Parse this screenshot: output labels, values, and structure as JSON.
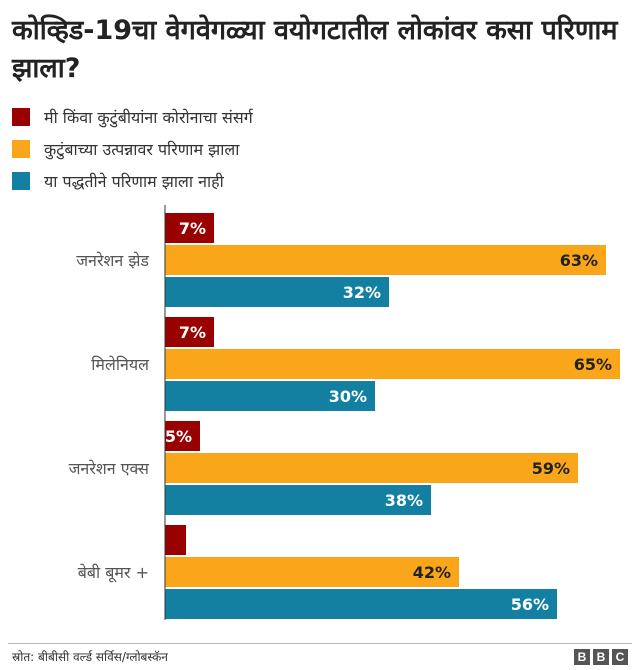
{
  "chart_data": {
    "type": "bar",
    "orientation": "horizontal",
    "title": "कोव्हिड-19चा वेगवेगळ्या वयोगटातील लोकांवर कसा परिणाम झाला?",
    "categories": [
      "जनरेशन झेड",
      "मिलेनियल",
      "जनरेशन एक्स",
      "बेबी बूमर +"
    ],
    "series": [
      {
        "name": "मी किंवा कुटुंबीयांना कोरोनाचा संसर्ग",
        "color": "#990000",
        "values": [
          7,
          7,
          5,
          3
        ],
        "labels": [
          "7%",
          "7%",
          "5%",
          ""
        ]
      },
      {
        "name": "कुटुंबाच्या उत्पन्नावर परिणाम झाला",
        "color": "#FAA61A",
        "values": [
          63,
          65,
          59,
          42
        ],
        "labels": [
          "63%",
          "65%",
          "59%",
          "42%"
        ]
      },
      {
        "name": "या पद्धतीने परिणाम झाला नाही",
        "color": "#1380A1",
        "values": [
          32,
          30,
          38,
          56
        ],
        "labels": [
          "32%",
          "30%",
          "38%",
          "56%"
        ]
      }
    ],
    "xlim": [
      0,
      65
    ],
    "grid": false,
    "legend_position": "top-left"
  },
  "source": "स्रोत: बीबीसी वर्ल्ड सर्विस/ग्लोबस्कॅन",
  "logo": [
    "B",
    "B",
    "C"
  ]
}
